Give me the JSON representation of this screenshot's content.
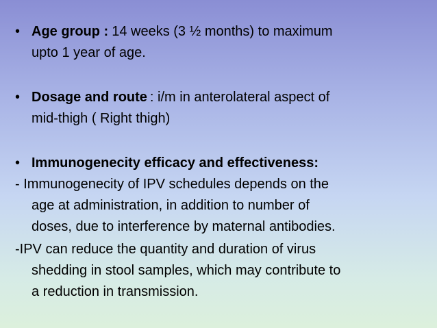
{
  "bullets": [
    {
      "label": "Age group :",
      "lines": [
        "14 weeks (3 ½ months) to maximum",
        "upto 1 year of age."
      ]
    },
    {
      "label": "Dosage and route",
      "lines": [
        ": i/m in anterolateral aspect of",
        "mid-thigh ( Right thigh)"
      ]
    },
    {
      "label": "Immunogenecity efficacy and effectiveness:",
      "lines": []
    }
  ],
  "paragraphs": [
    {
      "lines": [
        "-  Immunogenecity of IPV schedules depends on the",
        "age at administration, in addition to number of",
        "doses, due to interference by maternal antibodies."
      ]
    },
    {
      "lines": [
        "-IPV can reduce the quantity and duration of virus",
        "shedding in stool samples, which may contribute to",
        "a reduction in transmission."
      ]
    }
  ]
}
